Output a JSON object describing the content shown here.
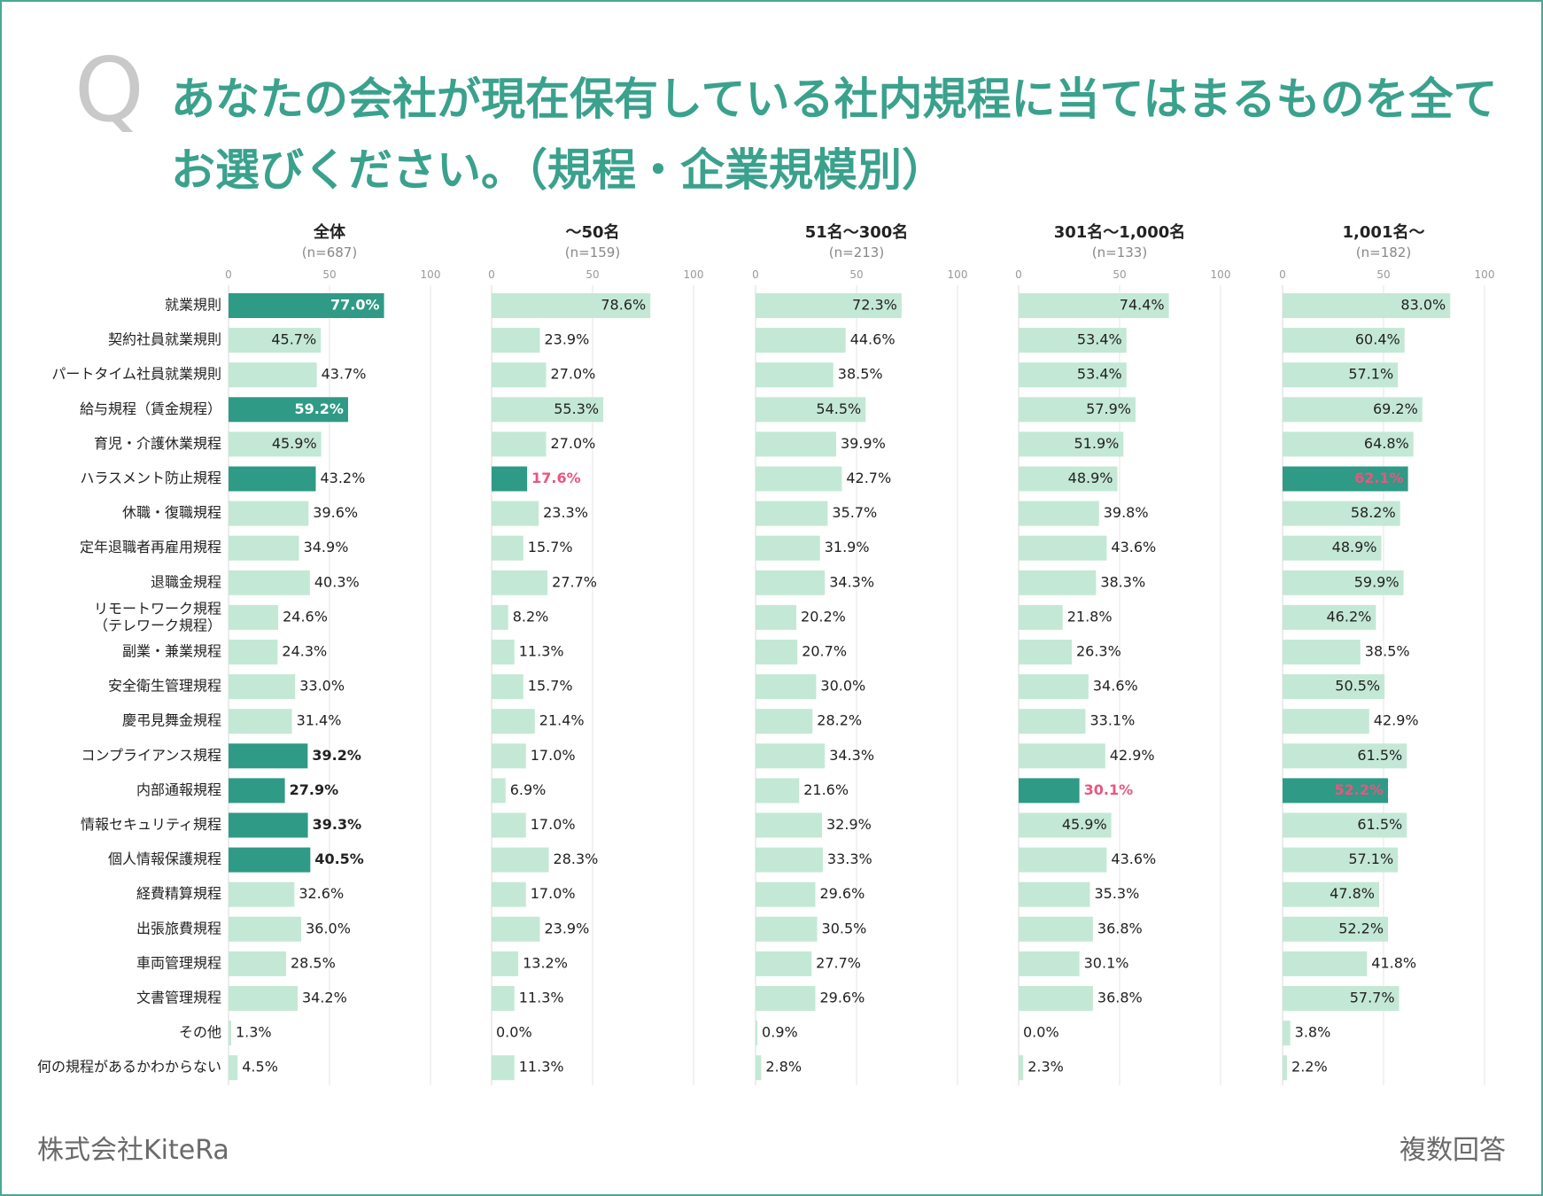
{
  "header": {
    "q_mark": "Q",
    "title": "あなたの会社が現在保有している社内規程に当てはまるものを全てお選びください。（規程・企業規模別）"
  },
  "footer": {
    "company": "株式会社KiteRa",
    "note": "複数回答"
  },
  "colors": {
    "bar_light": "#c4e8d6",
    "bar_dark": "#2f9a86",
    "text_default": "#222222",
    "text_highlight": "#e8567f",
    "text_on_dark": "#ffffff",
    "title": "#3aa18d",
    "border": "#4aa894",
    "grid": "#e4e4e4"
  },
  "chart_data": {
    "type": "bar",
    "orientation": "horizontal",
    "xlim": [
      0,
      100
    ],
    "xticks": [
      0,
      50,
      100
    ],
    "grid": true,
    "categories": [
      "就業規則",
      "契約社員就業規則",
      "パートタイム社員就業規則",
      "給与規程（賃金規程）",
      "育児・介護休業規程",
      "ハラスメント防止規程",
      "休職・復職規程",
      "定年退職者再雇用規程",
      "退職金規程",
      "リモートワーク規程\n（テレワーク規程）",
      "副業・兼業規程",
      "安全衛生管理規程",
      "慶弔見舞金規程",
      "コンプライアンス規程",
      "内部通報規程",
      "情報セキュリティ規程",
      "個人情報保護規程",
      "経費精算規程",
      "出張旅費規程",
      "車両管理規程",
      "文書管理規程",
      "その他",
      "何の規程があるかわからない"
    ],
    "series": [
      {
        "name": "全体",
        "n": "(n=687)",
        "values": [
          77.0,
          45.7,
          43.7,
          59.2,
          45.9,
          43.2,
          39.6,
          34.9,
          40.3,
          24.6,
          24.3,
          33.0,
          31.4,
          39.2,
          27.9,
          39.3,
          40.5,
          32.6,
          36.0,
          28.5,
          34.2,
          1.3,
          4.5
        ],
        "labels": [
          "77.0%",
          "45.7%",
          "43.7%",
          "59.2%",
          "45.9%",
          "43.2%",
          "39.6%",
          "34.9%",
          "40.3%",
          "24.6%",
          "24.3%",
          "33.0%",
          "31.4%",
          "39.2%",
          "27.9%",
          "39.3%",
          "40.5%",
          "32.6%",
          "36.0%",
          "28.5%",
          "34.2%",
          "1.3%",
          "4.5%"
        ],
        "dark_bars": [
          0,
          3,
          5,
          13,
          14,
          15,
          16
        ],
        "bold_labels_inside": [
          0,
          3
        ],
        "bold_labels_outside": [
          13,
          14,
          15,
          16
        ],
        "highlight_labels": []
      },
      {
        "name": "〜50名",
        "n": "(n=159)",
        "values": [
          78.6,
          23.9,
          27.0,
          55.3,
          27.0,
          17.6,
          23.3,
          15.7,
          27.7,
          8.2,
          11.3,
          15.7,
          21.4,
          17.0,
          6.9,
          17.0,
          28.3,
          17.0,
          23.9,
          13.2,
          11.3,
          0.0,
          11.3
        ],
        "labels": [
          "78.6%",
          "23.9%",
          "27.0%",
          "55.3%",
          "27.0%",
          "17.6%",
          "23.3%",
          "15.7%",
          "27.7%",
          "8.2%",
          "11.3%",
          "15.7%",
          "21.4%",
          "17.0%",
          "6.9%",
          "17.0%",
          "28.3%",
          "17.0%",
          "23.9%",
          "13.2%",
          "11.3%",
          "0.0%",
          "11.3%"
        ],
        "dark_bars": [
          5
        ],
        "bold_labels_inside": [],
        "bold_labels_outside": [],
        "highlight_labels": [
          5
        ]
      },
      {
        "name": "51名〜300名",
        "n": "(n=213)",
        "values": [
          72.3,
          44.6,
          38.5,
          54.5,
          39.9,
          42.7,
          35.7,
          31.9,
          34.3,
          20.2,
          20.7,
          30.0,
          28.2,
          34.3,
          21.6,
          32.9,
          33.3,
          29.6,
          30.5,
          27.7,
          29.6,
          0.9,
          2.8
        ],
        "labels": [
          "72.3%",
          "44.6%",
          "38.5%",
          "54.5%",
          "39.9%",
          "42.7%",
          "35.7%",
          "31.9%",
          "34.3%",
          "20.2%",
          "20.7%",
          "30.0%",
          "28.2%",
          "34.3%",
          "21.6%",
          "32.9%",
          "33.3%",
          "29.6%",
          "30.5%",
          "27.7%",
          "29.6%",
          "0.9%",
          "2.8%"
        ],
        "dark_bars": [],
        "bold_labels_inside": [],
        "bold_labels_outside": [],
        "highlight_labels": []
      },
      {
        "name": "301名〜1,000名",
        "n": "(n=133)",
        "values": [
          74.4,
          53.4,
          53.4,
          57.9,
          51.9,
          48.9,
          39.8,
          43.6,
          38.3,
          21.8,
          26.3,
          34.6,
          33.1,
          42.9,
          30.1,
          45.9,
          43.6,
          35.3,
          36.8,
          30.1,
          36.8,
          0.0,
          2.3
        ],
        "labels": [
          "74.4%",
          "53.4%",
          "53.4%",
          "57.9%",
          "51.9%",
          "48.9%",
          "39.8%",
          "43.6%",
          "38.3%",
          "21.8%",
          "26.3%",
          "34.6%",
          "33.1%",
          "42.9%",
          "30.1%",
          "45.9%",
          "43.6%",
          "35.3%",
          "36.8%",
          "30.1%",
          "36.8%",
          "0.0%",
          "2.3%"
        ],
        "dark_bars": [
          14
        ],
        "bold_labels_inside": [],
        "bold_labels_outside": [],
        "highlight_labels": [
          14
        ]
      },
      {
        "name": "1,001名〜",
        "n": "(n=182)",
        "values": [
          83.0,
          60.4,
          57.1,
          69.2,
          64.8,
          62.1,
          58.2,
          48.9,
          59.9,
          46.2,
          38.5,
          50.5,
          42.9,
          61.5,
          52.2,
          61.5,
          57.1,
          47.8,
          52.2,
          41.8,
          57.7,
          3.8,
          2.2
        ],
        "labels": [
          "83.0%",
          "60.4%",
          "57.1%",
          "69.2%",
          "64.8%",
          "62.1%",
          "58.2%",
          "48.9%",
          "59.9%",
          "46.2%",
          "38.5%",
          "50.5%",
          "42.9%",
          "61.5%",
          "52.2%",
          "61.5%",
          "57.1%",
          "47.8%",
          "52.2%",
          "41.8%",
          "57.7%",
          "3.8%",
          "2.2%"
        ],
        "dark_bars": [
          5,
          14
        ],
        "bold_labels_inside": [],
        "bold_labels_outside": [],
        "highlight_labels": [
          5,
          14
        ]
      }
    ]
  }
}
